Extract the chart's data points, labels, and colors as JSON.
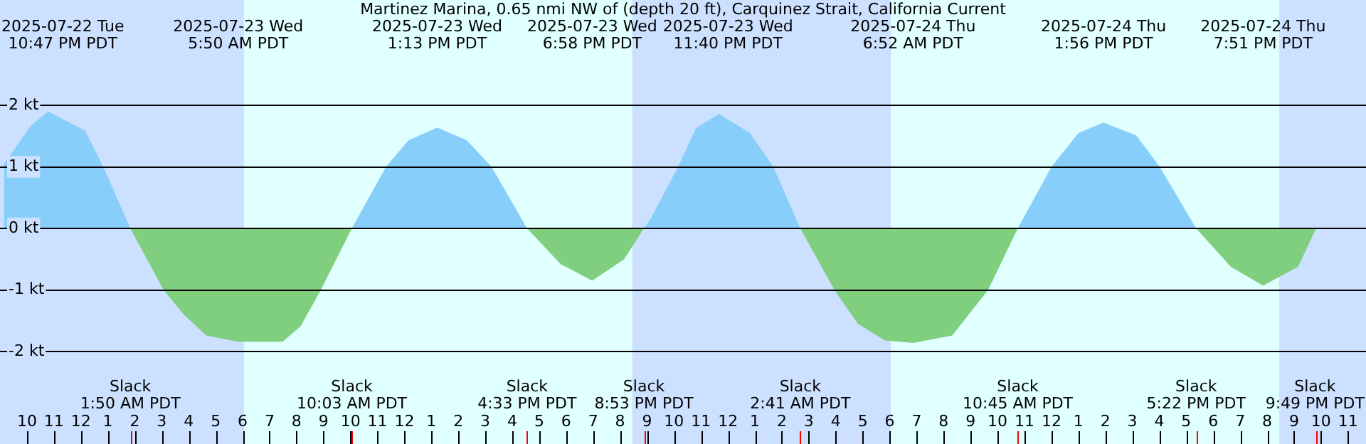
{
  "chart_data": {
    "type": "area",
    "title": "Martinez Marina, 0.65 nmi NW of (depth 20 ft), Carquinez Strait, California Current",
    "series": [
      {
        "color": "#87cefa",
        "x": [
          "2025-07-22T21:09",
          "2025-07-22T22:09",
          "2025-07-22T22:47",
          "2025-07-23T00:09",
          "2025-07-23T00:50",
          "2025-07-23T01:50",
          "2025-07-23T07:00",
          "2025-07-23T10:03",
          "2025-07-23T11:19",
          "2025-07-23T12:09",
          "2025-07-23T13:13",
          "2025-07-23T14:19",
          "2025-07-23T15:14",
          "2025-07-23T16:33",
          "2025-07-23T19:00",
          "2025-07-23T20:53",
          "2025-07-23T21:09",
          "2025-07-23T22:09",
          "2025-07-23T22:49",
          "2025-07-23T23:40",
          "2025-07-24T00:49",
          "2025-07-24T01:41",
          "2025-07-24T02:41",
          "2025-07-24T06:00",
          "2025-07-24T10:45",
          "2025-07-24T12:00",
          "2025-07-24T13:00",
          "2025-07-24T13:56",
          "2025-07-24T15:09",
          "2025-07-24T16:01",
          "2025-07-24T17:22"
        ],
        "values": [
          1.05,
          1.67,
          1.9,
          1.59,
          1.0,
          0,
          null,
          0,
          1.0,
          1.43,
          1.64,
          1.43,
          1.0,
          0,
          null,
          0,
          0.17,
          1.0,
          1.63,
          1.86,
          1.55,
          1.0,
          0,
          null,
          0,
          1.0,
          1.55,
          1.72,
          1.51,
          1.0,
          0
        ]
      },
      {
        "color": "#7fcf7f",
        "x": [
          "2025-07-23T01:50",
          "2025-07-23T03:04",
          "2025-07-23T03:49",
          "2025-07-23T04:39",
          "2025-07-23T05:50",
          "2025-07-23T07:29",
          "2025-07-23T08:09",
          "2025-07-23T08:54",
          "2025-07-23T10:03",
          "2025-07-23T13:00",
          "2025-07-23T16:33",
          "2025-07-23T17:48",
          "2025-07-23T18:58",
          "2025-07-23T20:09",
          "2025-07-23T20:53",
          "2025-07-24T00:00",
          "2025-07-24T02:41",
          "2025-07-24T03:57",
          "2025-07-24T04:49",
          "2025-07-24T05:49",
          "2025-07-24T06:52",
          "2025-07-24T08:19",
          "2025-07-24T09:39",
          "2025-07-24T10:45",
          "2025-07-24T14:00",
          "2025-07-24T17:22",
          "2025-07-24T18:39",
          "2025-07-24T19:51",
          "2025-07-24T21:09",
          "2025-07-24T21:49"
        ],
        "values": [
          0,
          -1.0,
          -1.4,
          -1.74,
          -1.84,
          -1.84,
          -1.59,
          -1.0,
          0,
          null,
          0,
          -0.58,
          -0.85,
          -0.5,
          0,
          null,
          0,
          -1.0,
          -1.55,
          -1.82,
          -1.86,
          -1.74,
          -1.0,
          0,
          null,
          0,
          -0.62,
          -0.93,
          -0.62,
          0
        ]
      }
    ],
    "xlim": [
      "2025-07-22T21:00",
      "2025-07-24T23:40"
    ],
    "xticks": [
      {
        "value": "2025-07-22T22:00",
        "label": "10"
      },
      {
        "value": "2025-07-22T23:00",
        "label": "11"
      },
      {
        "value": "2025-07-23T00:00",
        "label": "12"
      },
      {
        "value": "2025-07-23T01:00",
        "label": "1"
      },
      {
        "value": "2025-07-23T02:00",
        "label": "2"
      },
      {
        "value": "2025-07-23T03:00",
        "label": "3"
      },
      {
        "value": "2025-07-23T04:00",
        "label": "4"
      },
      {
        "value": "2025-07-23T05:00",
        "label": "5"
      },
      {
        "value": "2025-07-23T06:00",
        "label": "6"
      },
      {
        "value": "2025-07-23T07:00",
        "label": "7"
      },
      {
        "value": "2025-07-23T08:00",
        "label": "8"
      },
      {
        "value": "2025-07-23T09:00",
        "label": "9"
      },
      {
        "value": "2025-07-23T10:00",
        "label": "10"
      },
      {
        "value": "2025-07-23T11:00",
        "label": "11"
      },
      {
        "value": "2025-07-23T12:00",
        "label": "12"
      },
      {
        "value": "2025-07-23T13:00",
        "label": "1"
      },
      {
        "value": "2025-07-23T14:00",
        "label": "2"
      },
      {
        "value": "2025-07-23T15:00",
        "label": "3"
      },
      {
        "value": "2025-07-23T16:00",
        "label": "4"
      },
      {
        "value": "2025-07-23T17:00",
        "label": "5"
      },
      {
        "value": "2025-07-23T18:00",
        "label": "6"
      },
      {
        "value": "2025-07-23T19:00",
        "label": "7"
      },
      {
        "value": "2025-07-23T20:00",
        "label": "8"
      },
      {
        "value": "2025-07-23T21:00",
        "label": "9"
      },
      {
        "value": "2025-07-23T22:00",
        "label": "10"
      },
      {
        "value": "2025-07-23T23:00",
        "label": "11"
      },
      {
        "value": "2025-07-24T00:00",
        "label": "12"
      },
      {
        "value": "2025-07-24T01:00",
        "label": "1"
      },
      {
        "value": "2025-07-24T02:00",
        "label": "2"
      },
      {
        "value": "2025-07-24T03:00",
        "label": "3"
      },
      {
        "value": "2025-07-24T04:00",
        "label": "4"
      },
      {
        "value": "2025-07-24T05:00",
        "label": "5"
      },
      {
        "value": "2025-07-24T06:00",
        "label": "6"
      },
      {
        "value": "2025-07-24T07:00",
        "label": "7"
      },
      {
        "value": "2025-07-24T08:00",
        "label": "8"
      },
      {
        "value": "2025-07-24T09:00",
        "label": "9"
      },
      {
        "value": "2025-07-24T10:00",
        "label": "10"
      },
      {
        "value": "2025-07-24T11:00",
        "label": "11"
      },
      {
        "value": "2025-07-24T12:00",
        "label": "12"
      },
      {
        "value": "2025-07-24T13:00",
        "label": "1"
      },
      {
        "value": "2025-07-24T14:00",
        "label": "2"
      },
      {
        "value": "2025-07-24T15:00",
        "label": "3"
      },
      {
        "value": "2025-07-24T16:00",
        "label": "4"
      },
      {
        "value": "2025-07-24T17:00",
        "label": "5"
      },
      {
        "value": "2025-07-24T18:00",
        "label": "6"
      },
      {
        "value": "2025-07-24T19:00",
        "label": "7"
      },
      {
        "value": "2025-07-24T20:00",
        "label": "8"
      },
      {
        "value": "2025-07-24T21:00",
        "label": "9"
      },
      {
        "value": "2025-07-24T22:00",
        "label": "10"
      },
      {
        "value": "2025-07-24T23:00",
        "label": "11"
      }
    ],
    "ylim": [
      -2,
      2
    ],
    "yticks": [
      {
        "value": -2,
        "label": "-2 kt"
      },
      {
        "value": -1,
        "label": "-1 kt"
      },
      {
        "value": 0,
        "label": "0 kt"
      },
      {
        "value": 1,
        "label": "1 kt"
      },
      {
        "value": 2,
        "label": "2 kt"
      }
    ],
    "grid": "y",
    "bands": [
      {
        "axis": "x",
        "from": "2025-07-22T21:00",
        "to": "2025-07-23T06:03",
        "color": "#cce0ff"
      },
      {
        "axis": "x",
        "from": "2025-07-23T06:03",
        "to": "2025-07-23T20:27",
        "color": "#e0ffff"
      },
      {
        "axis": "x",
        "from": "2025-07-23T20:27",
        "to": "2025-07-24T06:03",
        "color": "#cce0ff"
      },
      {
        "axis": "x",
        "from": "2025-07-24T06:03",
        "to": "2025-07-24T20:27",
        "color": "#e0ffff"
      },
      {
        "axis": "x",
        "from": "2025-07-24T20:27",
        "to": "2025-07-24T23:40",
        "color": "#cce0ff"
      }
    ],
    "annotations": [
      "2025-07-22 Tue\n10:47 PM PDT",
      "Slack\n1:50 AM PDT",
      "2025-07-23 Wed\n5:50 AM PDT",
      "Slack\n10:03 AM PDT",
      "2025-07-23 Wed\n1:13 PM PDT",
      "Slack\n4:33 PM PDT",
      "2025-07-23 Wed\n6:58 PM PDT",
      "Slack\n8:53 PM PDT",
      "2025-07-23 Wed\n11:40 PM PDT",
      "Slack\n2:41 AM PDT",
      "2025-07-24 Thu\n6:52 AM PDT",
      "Slack\n10:45 AM PDT",
      "2025-07-24 Thu\n1:56 PM PDT",
      "Slack\n5:22 PM PDT",
      "2025-07-24 Thu\n7:51 PM PDT",
      "Slack\n9:49 PM PDT"
    ]
  }
}
